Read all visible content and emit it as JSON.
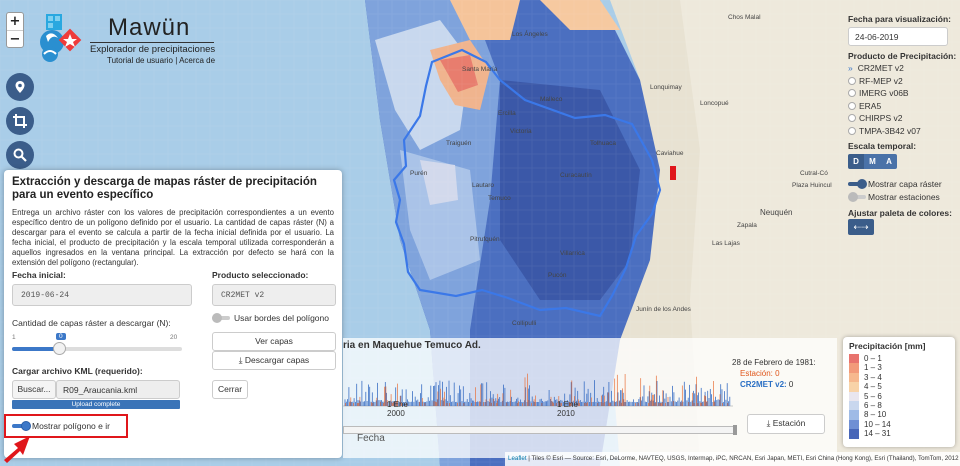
{
  "map": {
    "zoom_in": "+",
    "zoom_out": "−",
    "place_labels": [
      "Los Ángeles",
      "Victoria",
      "Temuco",
      "Pucón",
      "Collipulli",
      "Lonquimay",
      "Chos Malal",
      "Neuquén",
      "Zapala",
      "Las Lajas",
      "Cutral-Có",
      "Plaza Huincul",
      "Junín de los Andes",
      "Santa María",
      "Caviahue",
      "Loncopué",
      "Ercilla",
      "Traiguén",
      "Purén",
      "Lautaro",
      "Curacautín",
      "Villarrica",
      "Pitrufquén",
      "Tolhuaca",
      "Malleco"
    ]
  },
  "brand": {
    "title": "Mawün",
    "subtitle": "Explorador de precipitaciones",
    "link_tutorial": "Tutorial de usuario",
    "link_sep": " | ",
    "link_about": "Acerca de"
  },
  "left_tools": [
    {
      "name": "location-icon"
    },
    {
      "name": "crop-icon"
    },
    {
      "name": "search-icon"
    }
  ],
  "panel": {
    "title": "Extracción y descarga de mapas ráster de precipitación para un evento específico",
    "description": "Entrega un archivo ráster con los valores de precipitación correspondientes a un evento específico dentro de un polígono definido por el usuario. La cantidad de capas ráster (N) a descargar para el evento se calcula a partir de la fecha inicial definida por el usuario. La fecha inicial, el producto de precipitación y la escala temporal utilizada corresponderán a aquellos ingresados en la ventana principal. La extracción por defecto se hará con la extensión del polígono (rectangular).",
    "fecha_label": "Fecha inicial:",
    "fecha_value": "2019-06-24",
    "producto_label": "Producto seleccionado:",
    "producto_value": "CR2MET v2",
    "capas_label": "Cantidad de capas ráster a descargar (N):",
    "slider_min": "1",
    "slider_value": "0",
    "slider_max": "20",
    "usar_bordes_label": "Usar bordes del polígono",
    "ver_capas": "Ver capas",
    "descargar_capas": "Descargar capas",
    "kml_label": "Cargar archivo KML (requerido):",
    "buscar": "Buscar...",
    "kml_file": "R09_Araucania.kml",
    "upload_status": "Upload complete",
    "cerrar": "Cerrar",
    "mostrar_poligono": "Mostrar polígono e ir"
  },
  "timeseries": {
    "title": "ria en Maquehue Temuco Ad.",
    "date_readout": "28 de Febrero de 1981:",
    "estacion_label": "Estación:",
    "estacion_value": "0",
    "product_label": "CR2MET v2:",
    "product_value": "0",
    "tick_1": "1 Ene",
    "tick_1_year": "2000",
    "tick_2": "1 Ene",
    "tick_2_year": "2010",
    "xaxis_label": "Fecha",
    "estacion_button": "Estación"
  },
  "right_panel": {
    "fecha_label": "Fecha para visualización:",
    "fecha_value": "24-06-2019",
    "producto_label": "Producto de Precipitación:",
    "products": [
      "CR2MET v2",
      "RF-MEP v2",
      "IMERG v06B",
      "ERA5",
      "CHIRPS v2",
      "TMPA-3B42 v07"
    ],
    "selected_product": "CR2MET v2",
    "escala_label": "Escala temporal:",
    "escala_options": [
      "D",
      "M",
      "A"
    ],
    "mostrar_raster": "Mostrar capa ráster",
    "mostrar_estaciones": "Mostrar estaciones",
    "paleta_label": "Ajustar paleta de colores:"
  },
  "legend": {
    "title": "Precipitación [mm]",
    "items": [
      {
        "label": "0 – 1",
        "color": "#e8736e"
      },
      {
        "label": "1 – 3",
        "color": "#f29a7a"
      },
      {
        "label": "3 – 4",
        "color": "#f6b88e"
      },
      {
        "label": "4 – 5",
        "color": "#f8d3a8"
      },
      {
        "label": "5 – 6",
        "color": "#e9e6ef"
      },
      {
        "label": "6 – 8",
        "color": "#c9d7ee"
      },
      {
        "label": "8 – 10",
        "color": "#9fbbe6"
      },
      {
        "label": "10 – 14",
        "color": "#6f8fd4"
      },
      {
        "label": "14 – 31",
        "color": "#4866b8"
      }
    ]
  },
  "attribution": {
    "leaflet": "Leaflet",
    "text": " | Tiles © Esri — Source: Esri, DeLorme, NAVTEQ, USGS, Intermap, iPC, NRCAN, Esri Japan, METI, Esri China (Hong Kong), Esri (Thailand), TomTom, 2012"
  },
  "colors": {
    "accent": "#3b5d8a",
    "toggle_blue": "#3c78c8",
    "highlight_red": "#e0161b"
  }
}
